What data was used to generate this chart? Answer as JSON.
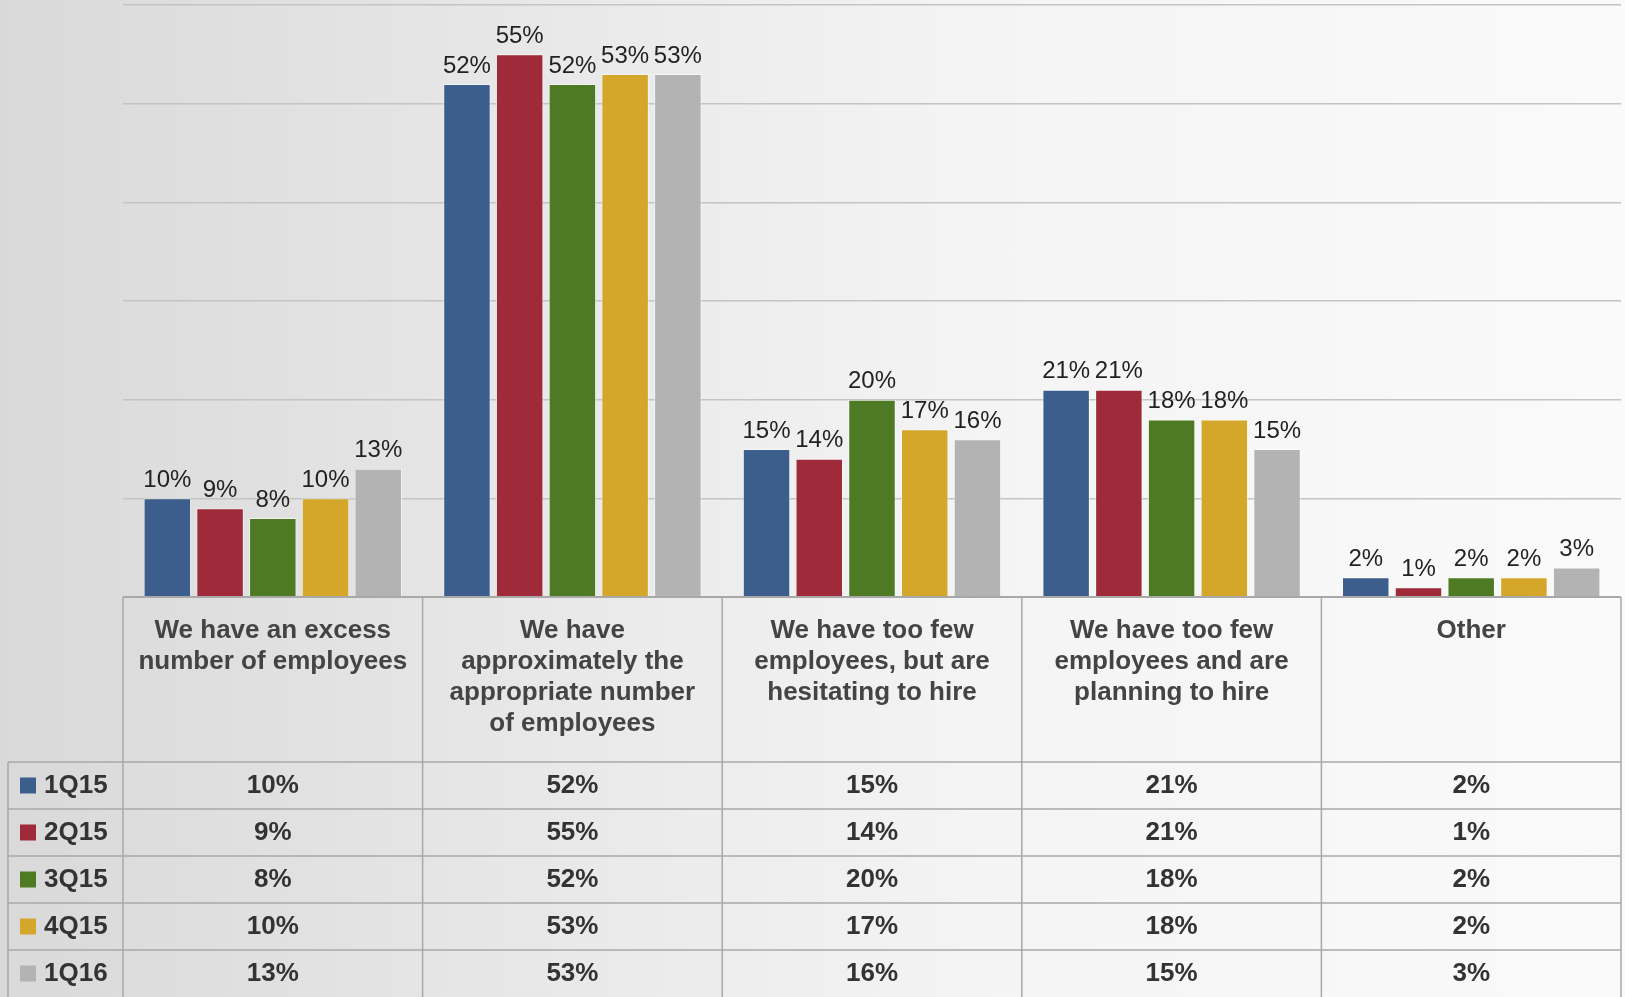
{
  "chart_data": {
    "type": "bar",
    "categories": [
      "We have an excess number of employees",
      "We have approximately the appropriate number of employees",
      "We have too few employees, but are hesitating to hire",
      "We have too few employees and are planning to hire",
      "Other"
    ],
    "series": [
      {
        "name": "1Q15",
        "color": "#3b5e8c",
        "values": [
          10,
          52,
          15,
          21,
          2
        ],
        "value_labels": [
          "10%",
          "52%",
          "15%",
          "21%",
          "2%"
        ]
      },
      {
        "name": "2Q15",
        "color": "#9e2a3a",
        "values": [
          9,
          55,
          14,
          21,
          1
        ],
        "value_labels": [
          "9%",
          "55%",
          "14%",
          "21%",
          "1%"
        ]
      },
      {
        "name": "3Q15",
        "color": "#4e7a23",
        "values": [
          8,
          52,
          20,
          18,
          2
        ],
        "value_labels": [
          "8%",
          "52%",
          "20%",
          "18%",
          "2%"
        ]
      },
      {
        "name": "4Q15",
        "color": "#d4a62a",
        "values": [
          10,
          53,
          17,
          18,
          2
        ],
        "value_labels": [
          "10%",
          "53%",
          "17%",
          "18%",
          "2%"
        ]
      },
      {
        "name": "1Q16",
        "color": "#b3b3b3",
        "values": [
          13,
          53,
          16,
          15,
          3
        ],
        "value_labels": [
          "13%",
          "53%",
          "16%",
          "15%",
          "3%"
        ]
      }
    ],
    "ylim": [
      0,
      60
    ],
    "yticks": [
      {
        "value": 0,
        "label": null
      },
      {
        "value": 10,
        "label": null
      },
      {
        "value": 20,
        "label": null
      },
      {
        "value": 30,
        "label": null
      },
      {
        "value": 40,
        "label": null
      },
      {
        "value": 50,
        "label": null
      },
      {
        "value": 60,
        "label": null
      }
    ],
    "tick_labels": "x",
    "grid": "y",
    "legend": "bottom"
  }
}
